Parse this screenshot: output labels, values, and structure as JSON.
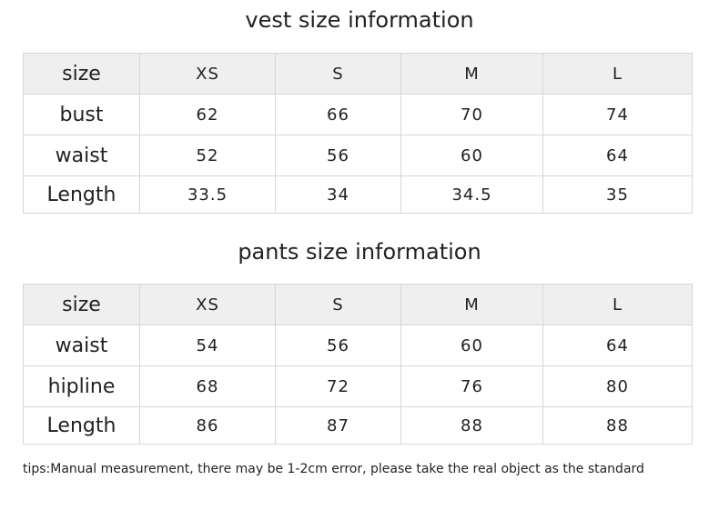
{
  "tables": [
    {
      "title": "vest size information",
      "header": [
        "size",
        "XS",
        "S",
        "M",
        "L"
      ],
      "rows": [
        [
          "bust",
          62,
          66,
          70,
          74
        ],
        [
          "waist",
          52,
          56,
          60,
          64
        ],
        [
          "Length",
          33.5,
          34,
          34.5,
          35
        ]
      ]
    },
    {
      "title": "pants size information",
      "header": [
        "size",
        "XS",
        "S",
        "M",
        "L"
      ],
      "rows": [
        [
          "waist",
          54,
          56,
          60,
          64
        ],
        [
          "hipline",
          68,
          72,
          76,
          80
        ],
        [
          "Length",
          86,
          87,
          88,
          88
        ]
      ]
    }
  ],
  "tip": "tips:Manual measurement, there may be 1-2cm error, please take the real object as the standard"
}
